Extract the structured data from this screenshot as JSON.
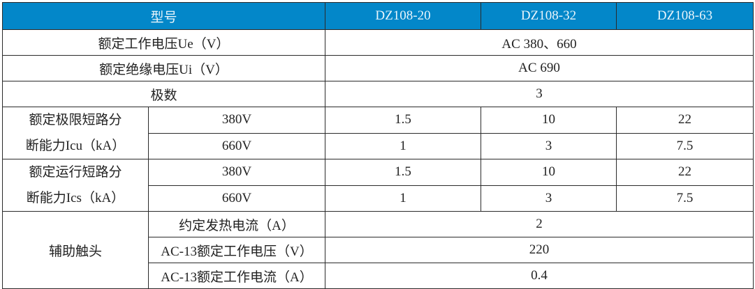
{
  "header": {
    "model_label": "型号",
    "models": [
      "DZ108-20",
      "DZ108-32",
      "DZ108-63"
    ]
  },
  "colors": {
    "header_bg": "#0387c9",
    "header_text": "#e8f4fb",
    "border": "#2a2a2a"
  },
  "rows": {
    "rated_voltage": {
      "label": "额定工作电压Ue（V）",
      "value": "AC 380、660"
    },
    "insulation_voltage": {
      "label": "额定绝缘电压Ui（V）",
      "value": "AC 690"
    },
    "poles": {
      "label": "极数",
      "value": "3"
    },
    "icu": {
      "label_line1": "额定极限短路分",
      "label_line2": "断能力Icu（kA）",
      "sub": [
        {
          "voltage": "380V",
          "values": [
            "1.5",
            "10",
            "22"
          ]
        },
        {
          "voltage": "660V",
          "values": [
            "1",
            "3",
            "7.5"
          ]
        }
      ]
    },
    "ics": {
      "label_line1": "额定运行短路分",
      "label_line2": "断能力Ics（kA）",
      "sub": [
        {
          "voltage": "380V",
          "values": [
            "1.5",
            "10",
            "22"
          ]
        },
        {
          "voltage": "660V",
          "values": [
            "1",
            "3",
            "7.5"
          ]
        }
      ]
    },
    "aux": {
      "label": "辅助触头",
      "sub": [
        {
          "label": "约定发热电流（A）",
          "value": "2"
        },
        {
          "label": "AC-13额定工作电压（V）",
          "value": "220"
        },
        {
          "label": "AC-13额定工作电流（A）",
          "value": "0.4"
        }
      ]
    }
  }
}
